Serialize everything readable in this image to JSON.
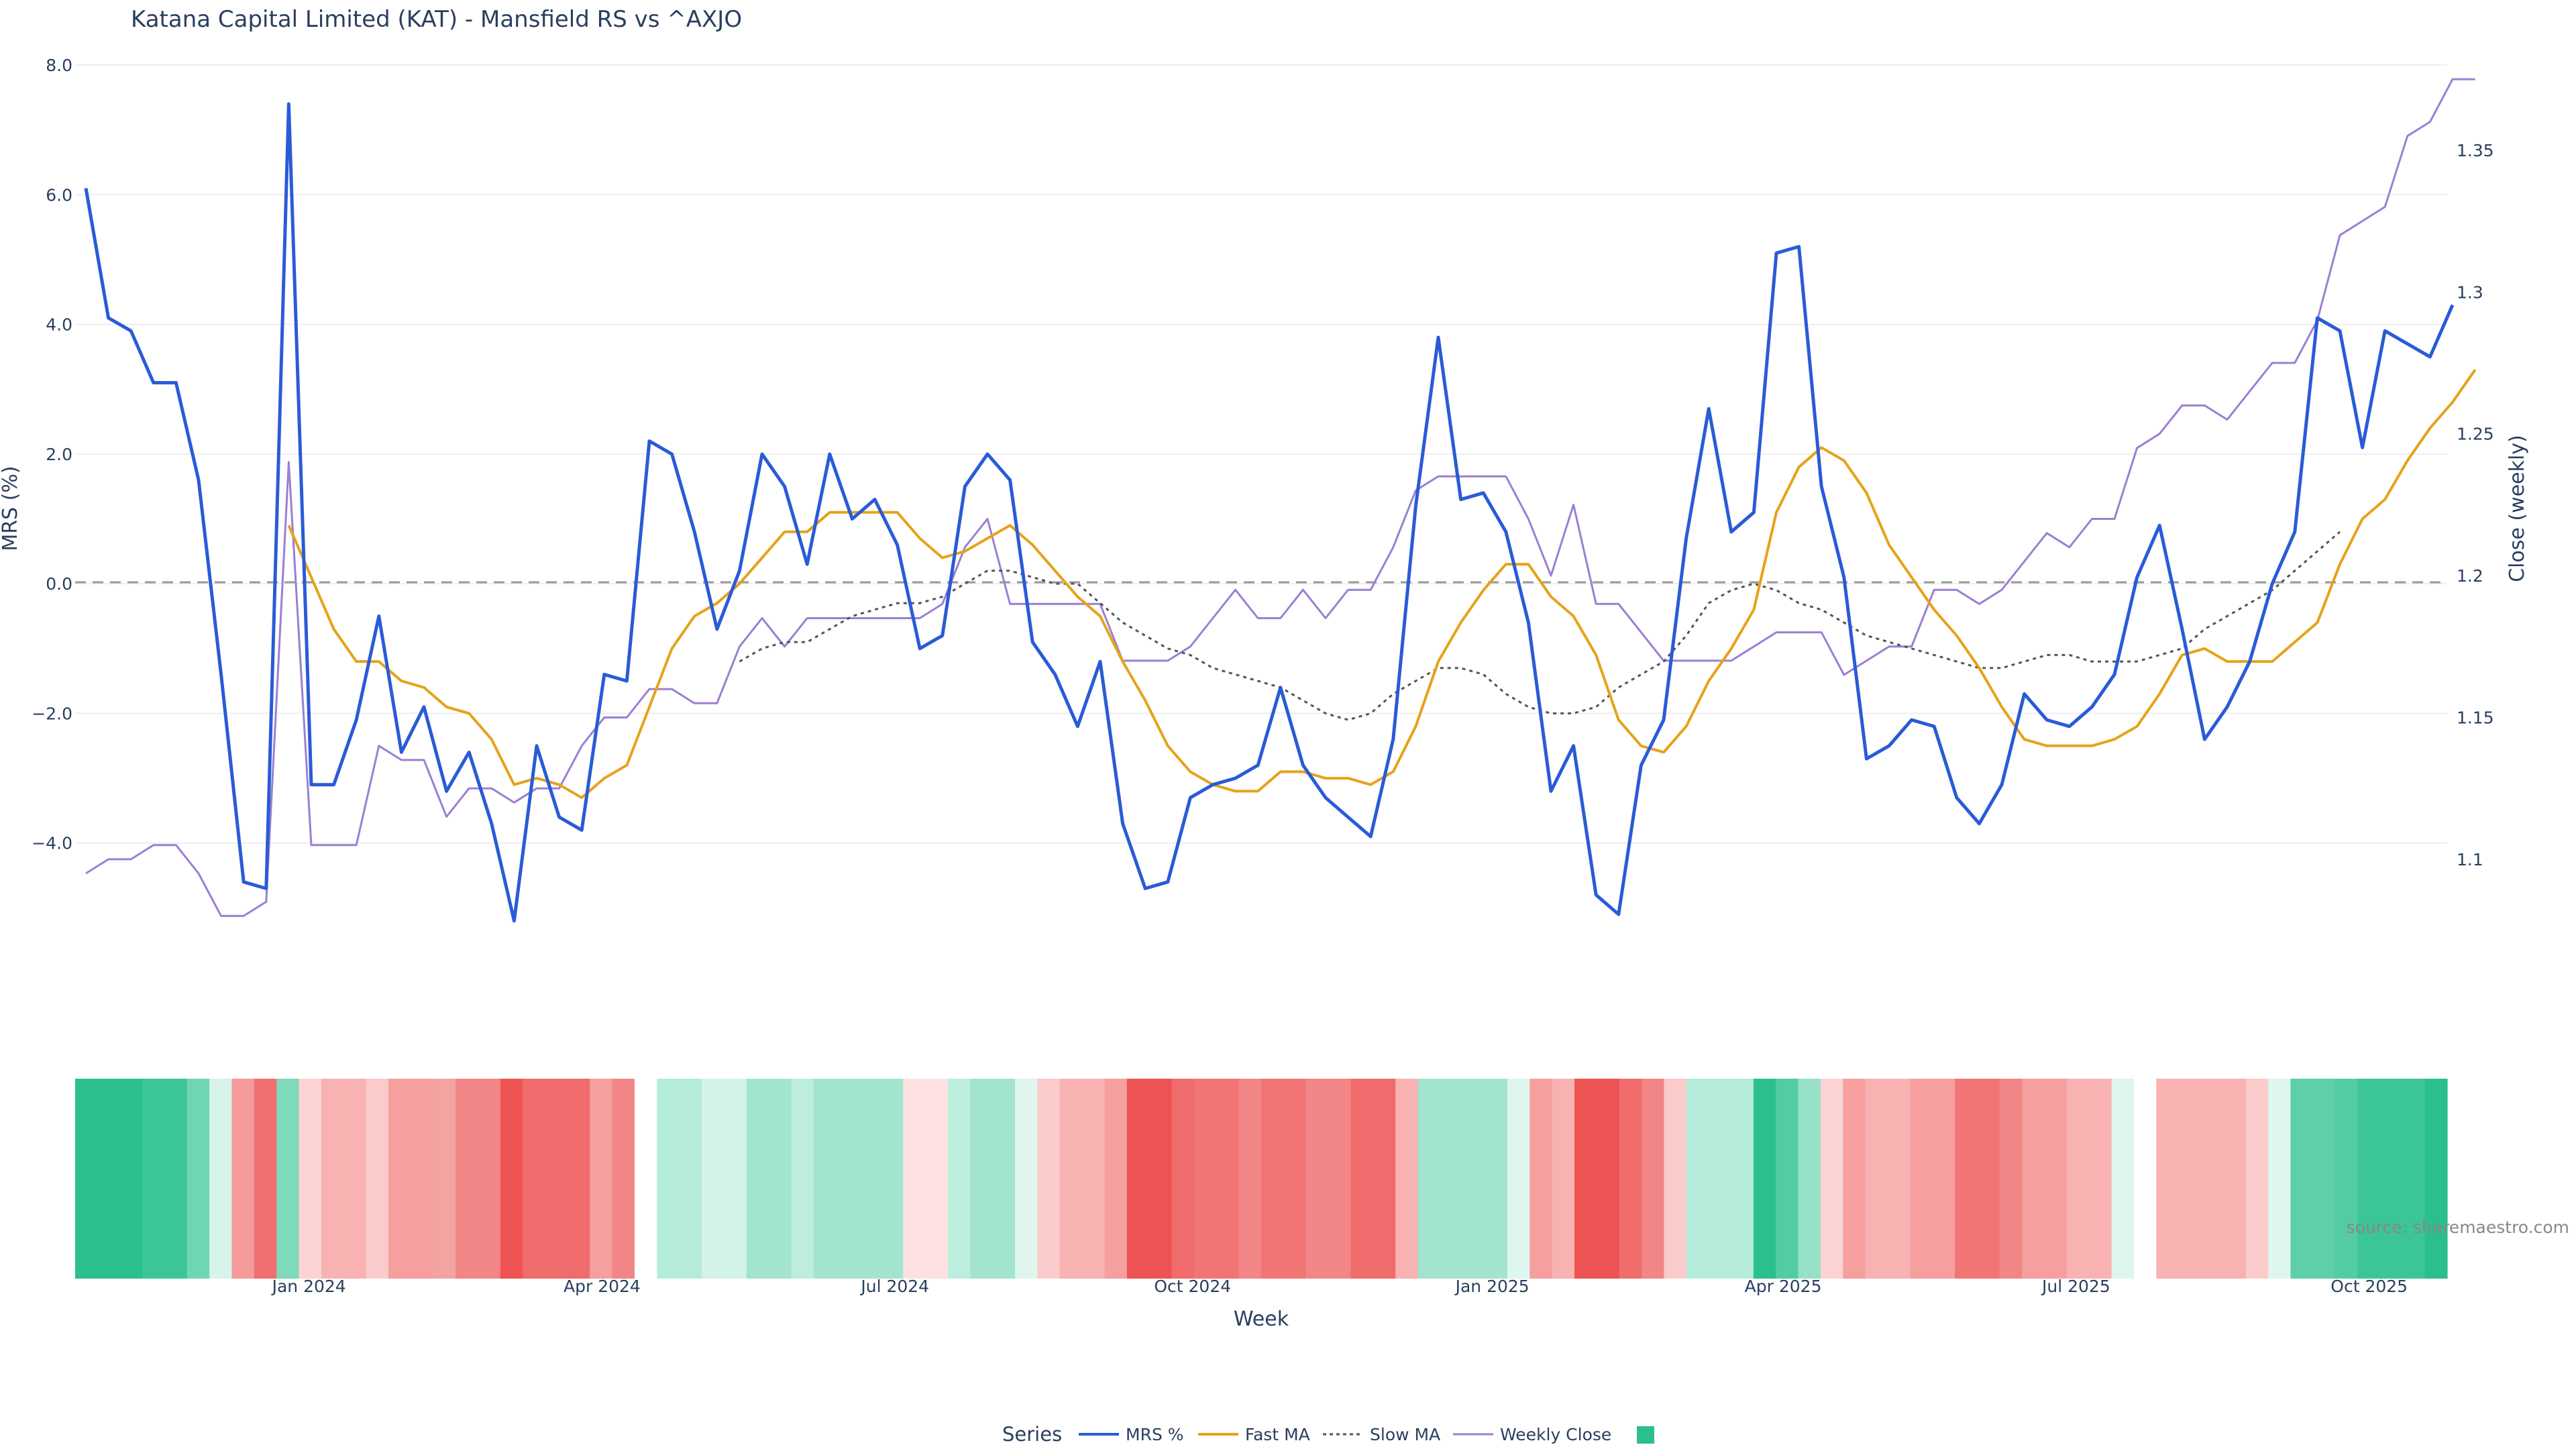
{
  "chart_data": {
    "type": "line",
    "title": "Katana Capital Limited (KAT) - Mansfield RS vs ^AXJO",
    "xlabel": "Week",
    "ylabel_left": "MRS (%)",
    "ylabel_right": "Close (weekly)",
    "ylim_left": [
      -6.0,
      8.0
    ],
    "ylim_right": [
      1.06,
      1.38
    ],
    "yticks_left": [
      "8.0",
      "6.0",
      "4.0",
      "2.0",
      "0.0",
      "−2.0",
      "−4.0"
    ],
    "yticks_right": [
      "1.35",
      "1.3",
      "1.25",
      "1.2",
      "1.15",
      "1.1"
    ],
    "x_tick_labels": [
      "Jan 2024",
      "Apr 2024",
      "Jul 2024",
      "Oct 2024",
      "Jan 2025",
      "Apr 2025",
      "Jul 2025",
      "Oct 2025"
    ],
    "x_tick_weeks": [
      9.9,
      22.9,
      35.9,
      49.1,
      62.4,
      75.3,
      88.3,
      101.3
    ],
    "weeks_count": 106,
    "grid": true,
    "zero_line": true,
    "legend_position": "bottom",
    "source_note": "source: sharemaestro.com",
    "series": [
      {
        "name": "MRS %",
        "color": "#2a5bd7",
        "style": "solid",
        "axis": "left",
        "values": [
          6.1,
          4.1,
          3.9,
          3.1,
          3.1,
          1.6,
          -1.4,
          -4.6,
          -4.7,
          7.4,
          -3.1,
          -3.1,
          -2.1,
          -0.5,
          -2.6,
          -1.9,
          -3.2,
          -2.6,
          -3.7,
          -5.2,
          -2.5,
          -3.6,
          -3.8,
          -1.4,
          -1.5,
          2.2,
          2.0,
          0.8,
          -0.7,
          0.2,
          2.0,
          1.5,
          0.3,
          2.0,
          1.0,
          1.3,
          0.6,
          -1.0,
          -0.8,
          1.5,
          2.0,
          1.6,
          -0.9,
          -1.4,
          -2.2,
          -1.2,
          -3.7,
          -4.7,
          -4.6,
          -3.3,
          -3.1,
          -3.0,
          -2.8,
          -1.6,
          -2.8,
          -3.3,
          -3.6,
          -3.9,
          -2.4,
          1.2,
          3.8,
          1.3,
          1.4,
          0.8,
          -0.6,
          -3.2,
          -2.5,
          -4.8,
          -5.1,
          -2.8,
          -2.1,
          0.7,
          2.7,
          0.8,
          1.1,
          5.1,
          5.2,
          1.5,
          0.1,
          -2.7,
          -2.5,
          -2.1,
          -2.2,
          -3.3,
          -3.7,
          -3.1,
          -1.7,
          -2.1,
          -2.2,
          -1.9,
          -1.4,
          0.1,
          0.9,
          -0.7,
          -2.4,
          -1.9,
          -1.2,
          0.0,
          0.8,
          4.1,
          3.9,
          2.1,
          3.9,
          3.7,
          3.5,
          4.3
        ]
      },
      {
        "name": "Fast MA",
        "color": "#e5a31a",
        "style": "solid",
        "axis": "left",
        "start": 9,
        "values": [
          0.9,
          0.1,
          -0.7,
          -1.2,
          -1.2,
          -1.5,
          -1.6,
          -1.9,
          -2.0,
          -2.4,
          -3.1,
          -3.0,
          -3.1,
          -3.3,
          -3.0,
          -2.8,
          -1.9,
          -1.0,
          -0.5,
          -0.3,
          0.0,
          0.4,
          0.8,
          0.8,
          1.1,
          1.1,
          1.1,
          1.1,
          0.7,
          0.4,
          0.5,
          0.7,
          0.9,
          0.6,
          0.2,
          -0.2,
          -0.5,
          -1.2,
          -1.8,
          -2.5,
          -2.9,
          -3.1,
          -3.2,
          -3.2,
          -2.9,
          -2.9,
          -3.0,
          -3.0,
          -3.1,
          -2.9,
          -2.2,
          -1.2,
          -0.6,
          -0.1,
          0.3,
          0.3,
          -0.2,
          -0.5,
          -1.1,
          -2.1,
          -2.5,
          -2.6,
          -2.2,
          -1.5,
          -1.0,
          -0.4,
          1.1,
          1.8,
          2.1,
          1.9,
          1.4,
          0.6,
          0.1,
          -0.4,
          -0.8,
          -1.3,
          -1.9,
          -2.4,
          -2.5,
          -2.5,
          -2.5,
          -2.4,
          -2.2,
          -1.7,
          -1.1,
          -1.0,
          -1.2,
          -1.2,
          -1.2,
          -0.9,
          -0.6,
          0.3,
          1.0,
          1.3,
          1.9,
          2.4,
          2.8,
          3.3
        ]
      },
      {
        "name": "Slow MA",
        "color": "#555555",
        "style": "dotted",
        "axis": "left",
        "start": 29,
        "values": [
          -1.2,
          -1.0,
          -0.9,
          -0.9,
          -0.7,
          -0.5,
          -0.4,
          -0.3,
          -0.3,
          -0.2,
          0.0,
          0.2,
          0.2,
          0.1,
          0.0,
          0.0,
          -0.3,
          -0.6,
          -0.8,
          -1.0,
          -1.1,
          -1.3,
          -1.4,
          -1.5,
          -1.6,
          -1.8,
          -2.0,
          -2.1,
          -2.0,
          -1.7,
          -1.5,
          -1.3,
          -1.3,
          -1.4,
          -1.7,
          -1.9,
          -2.0,
          -2.0,
          -1.9,
          -1.6,
          -1.4,
          -1.2,
          -0.8,
          -0.3,
          -0.1,
          0.0,
          -0.1,
          -0.3,
          -0.4,
          -0.6,
          -0.8,
          -0.9,
          -1.0,
          -1.1,
          -1.2,
          -1.3,
          -1.3,
          -1.2,
          -1.1,
          -1.1,
          -1.2,
          -1.2,
          -1.2,
          -1.1,
          -1.0,
          -0.7,
          -0.5,
          -0.3,
          -0.1,
          0.2,
          0.5,
          0.8
        ]
      },
      {
        "name": "Weekly Close",
        "color": "#9b7fd4",
        "style": "solid",
        "axis": "right",
        "values": [
          1.095,
          1.1,
          1.1,
          1.105,
          1.105,
          1.095,
          1.08,
          1.08,
          1.085,
          1.24,
          1.105,
          1.105,
          1.105,
          1.14,
          1.135,
          1.135,
          1.115,
          1.125,
          1.125,
          1.12,
          1.125,
          1.125,
          1.14,
          1.15,
          1.15,
          1.16,
          1.16,
          1.155,
          1.155,
          1.175,
          1.185,
          1.175,
          1.185,
          1.185,
          1.185,
          1.185,
          1.185,
          1.185,
          1.19,
          1.21,
          1.22,
          1.19,
          1.19,
          1.19,
          1.19,
          1.19,
          1.17,
          1.17,
          1.17,
          1.175,
          1.185,
          1.195,
          1.185,
          1.185,
          1.195,
          1.185,
          1.195,
          1.195,
          1.21,
          1.23,
          1.235,
          1.235,
          1.235,
          1.235,
          1.22,
          1.2,
          1.225,
          1.19,
          1.19,
          1.18,
          1.17,
          1.17,
          1.17,
          1.17,
          1.175,
          1.18,
          1.18,
          1.18,
          1.165,
          1.17,
          1.175,
          1.175,
          1.195,
          1.195,
          1.19,
          1.195,
          1.205,
          1.215,
          1.21,
          1.22,
          1.22,
          1.245,
          1.25,
          1.26,
          1.26,
          1.255,
          1.265,
          1.275,
          1.275,
          1.29,
          1.32,
          1.325,
          1.33,
          1.355,
          1.36,
          1.375,
          1.375
        ]
      }
    ],
    "heatmap": {
      "label": "",
      "colors": [
        "#2bbf8d",
        "#2bbf8d",
        "#2bbf8d",
        "#3cc597",
        "#3cc597",
        "#6fd6b4",
        "#d7f3ea",
        "#f59b9b",
        "#f07070",
        "#7fd9bb",
        "#fbd3d3",
        "#f8b2b2",
        "#f8b2b2",
        "#fbcaca",
        "#f59f9f",
        "#f59f9f",
        "#f4a3a3",
        "#f28686",
        "#f28686",
        "#ee5353",
        "#f06c6c",
        "#f06c6c",
        "#f06c6c",
        "#f59f9f",
        "#f28686",
        "#ffffff",
        "#b5ebd9",
        "#b5ebd9",
        "#d3f3e8",
        "#d3f3e8",
        "#a3e4cf",
        "#a3e4cf",
        "#bdeedd",
        "#a3e4cf",
        "#a3e4cf",
        "#a3e4cf",
        "#a3e4cf",
        "#fde1e1",
        "#fde1e1",
        "#bdeedd",
        "#a3e4cf",
        "#a3e4cf",
        "#def6ee",
        "#fbcaca",
        "#f8b2b2",
        "#f8b2b2",
        "#f59f9f",
        "#ee5353",
        "#ee5353",
        "#f06c6c",
        "#f17575",
        "#f17575",
        "#f28686",
        "#f17575",
        "#f17575",
        "#f28686",
        "#f28686",
        "#f06c6c",
        "#f06c6c",
        "#f8b2b2",
        "#a3e4cf",
        "#a3e4cf",
        "#a3e4cf",
        "#a3e4cf",
        "#def6ee",
        "#f59f9f",
        "#f8b2b2",
        "#ee5353",
        "#ee5353",
        "#f06c6c",
        "#f28686",
        "#fbcaca",
        "#b5ebd9",
        "#b5ebd9",
        "#b5ebd9",
        "#2bbf8d",
        "#54cca3",
        "#96e1c8",
        "#fbd3d3",
        "#f59f9f",
        "#f8b2b2",
        "#f8b2b2",
        "#f59f9f",
        "#f59f9f",
        "#f17575",
        "#f17575",
        "#f28686",
        "#f59f9f",
        "#f59f9f",
        "#f8b2b2",
        "#f8b2b2",
        "#def6ee",
        "#ffffff",
        "#f8b2b2",
        "#f8b2b2",
        "#f8b2b2",
        "#f8b2b2",
        "#fbcaca",
        "#def6ee",
        "#5ecfa8",
        "#5ecfa8",
        "#54cca3",
        "#3cc597",
        "#3cc597",
        "#3cc597",
        "#2bbf8d"
      ]
    }
  }
}
